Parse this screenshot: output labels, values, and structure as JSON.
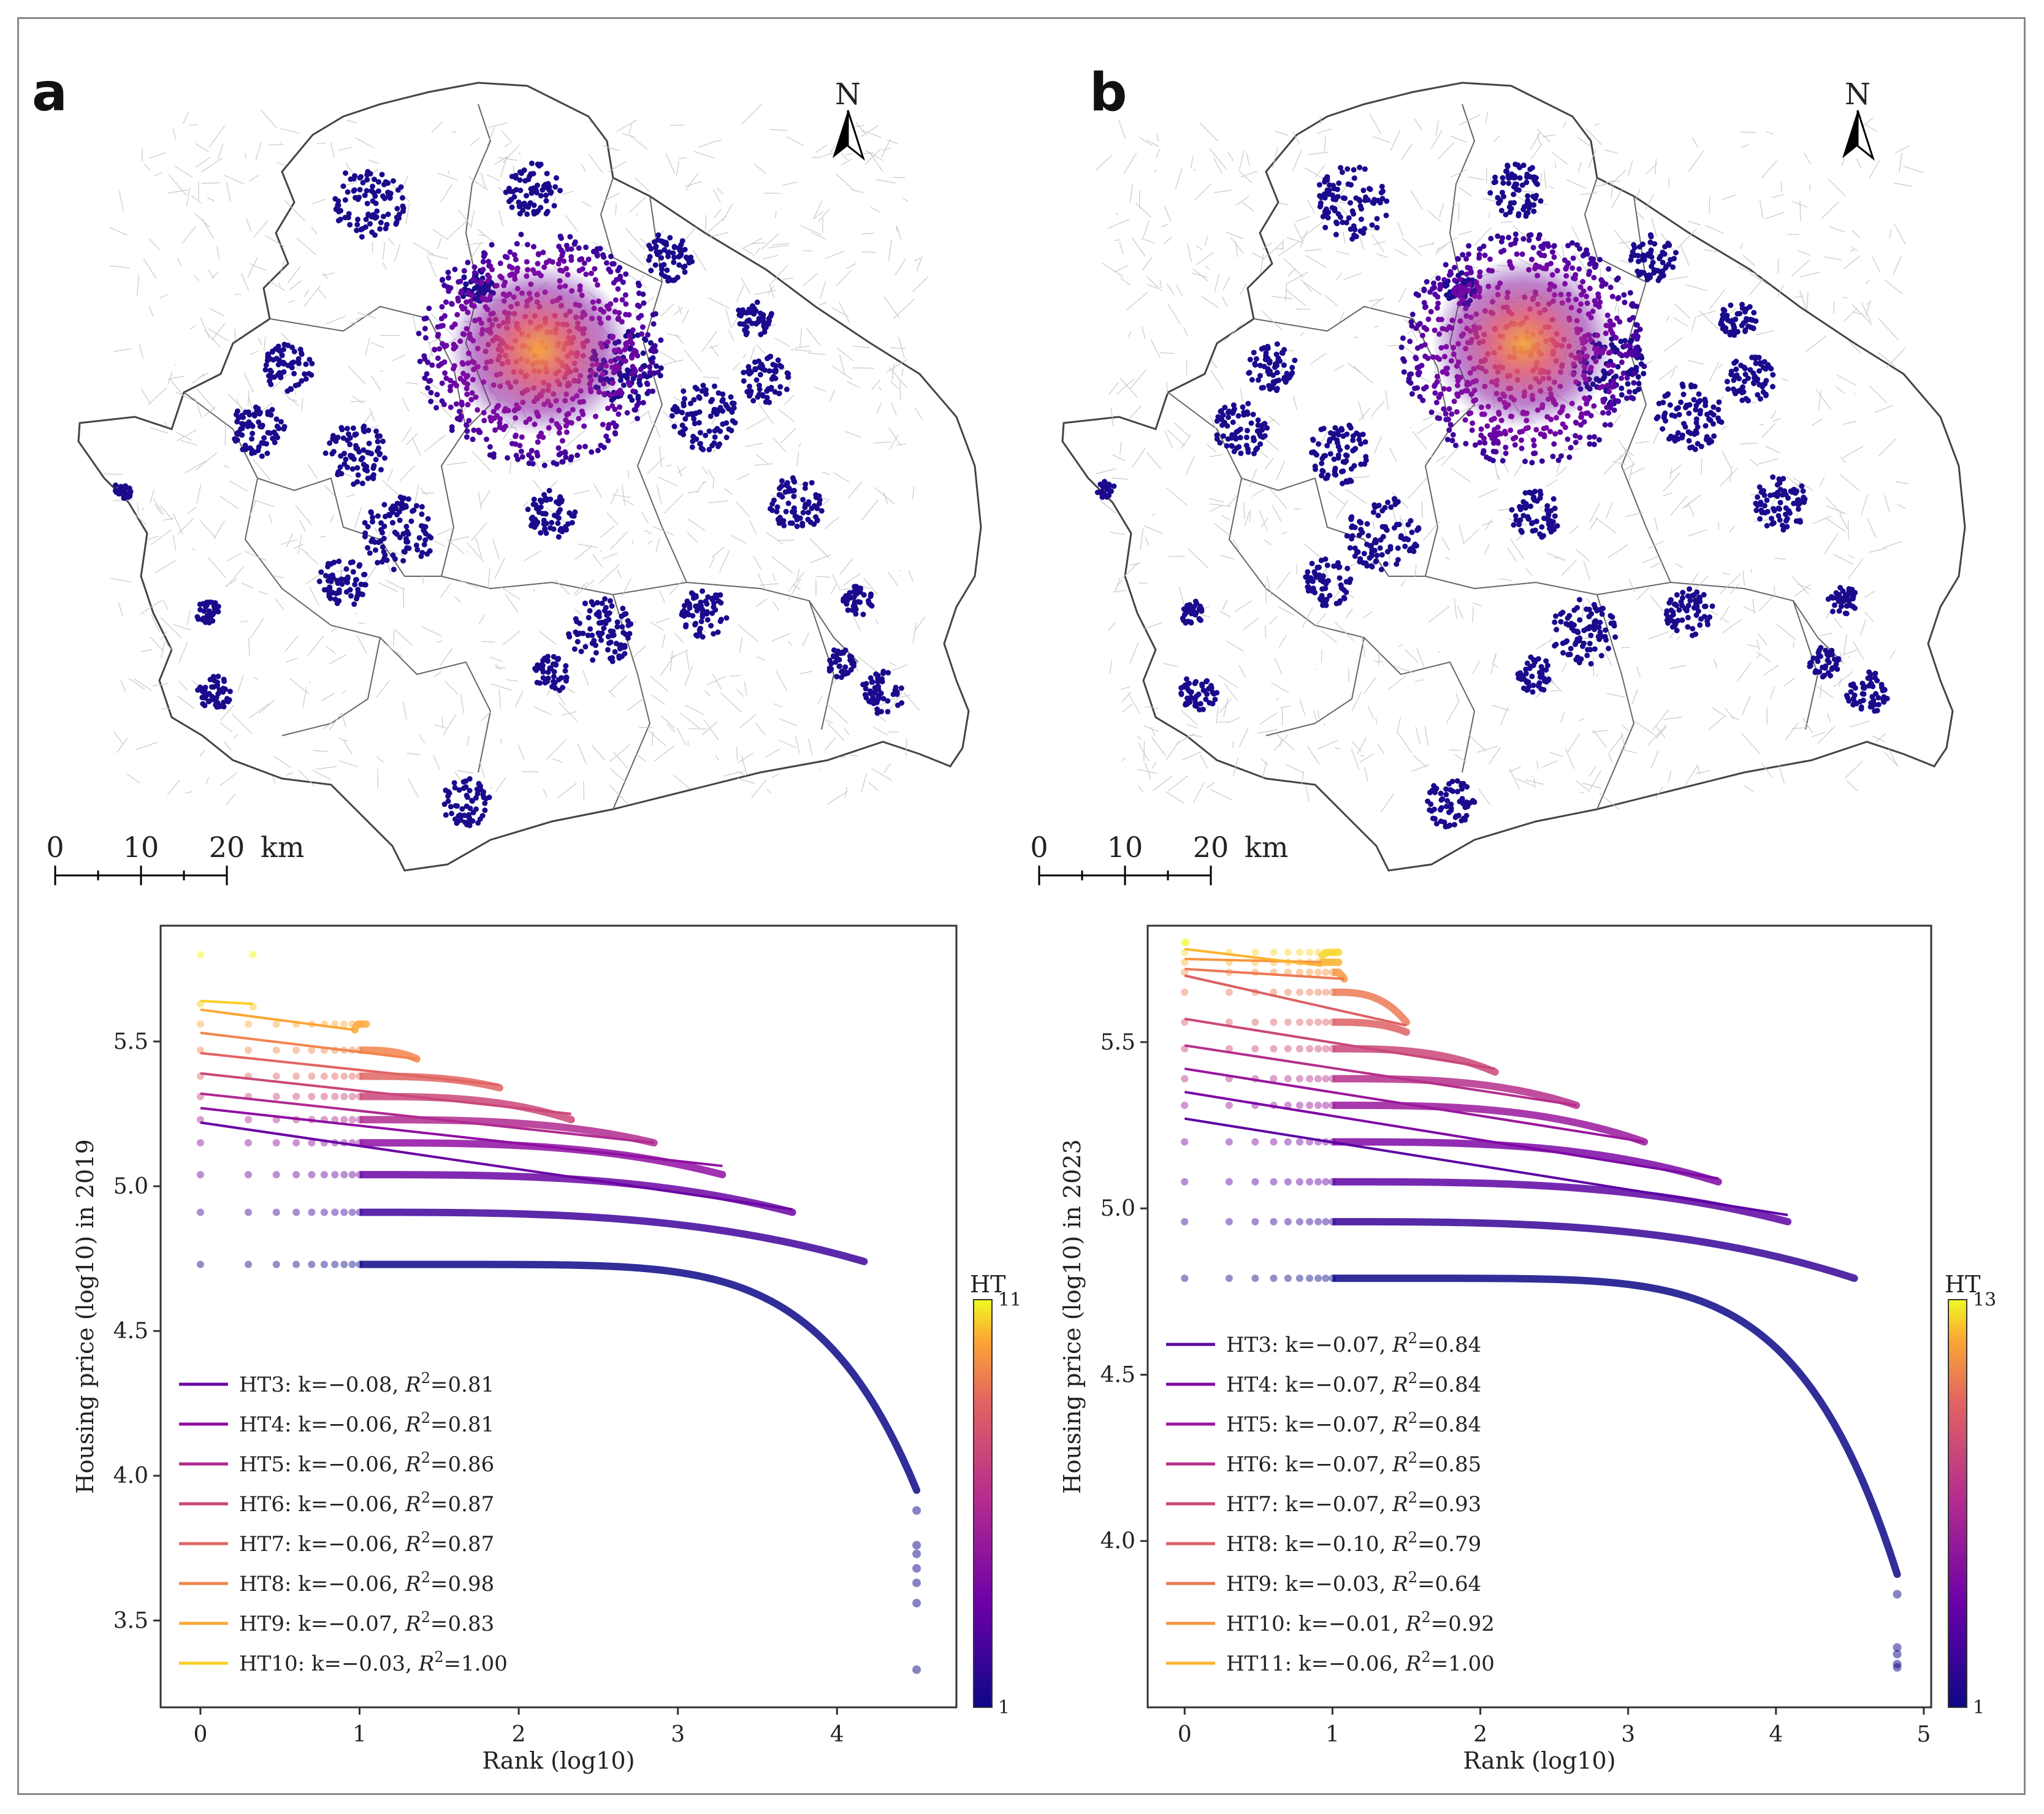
{
  "figure": {
    "panels": [
      {
        "id": "a",
        "label": "a",
        "north_label": "N",
        "scale_ticks": [
          "0",
          "10",
          "20"
        ],
        "scale_unit": "km"
      },
      {
        "id": "b",
        "label": "b",
        "north_label": "N",
        "scale_ticks": [
          "0",
          "10",
          "20"
        ],
        "scale_unit": "km"
      }
    ]
  },
  "chart_data": [
    {
      "type": "scatter",
      "xlabel": "Rank (log10)",
      "ylabel": "Housing price (log10) in 2019",
      "xlim": [
        -0.25,
        4.75
      ],
      "ylim": [
        3.2,
        5.9
      ],
      "xticks": [
        0,
        1,
        2,
        3,
        4
      ],
      "yticks": [
        3.5,
        4.0,
        4.5,
        5.0,
        5.5
      ],
      "colorbar": {
        "label": "HT",
        "min": 1,
        "max": 11,
        "colormap": "plasma"
      },
      "base_curve": {
        "plateau": 4.73,
        "end_x": 4.5,
        "end_y": 3.95,
        "tail_points": [
          3.88,
          3.76,
          3.73,
          3.68,
          3.63,
          3.56,
          3.33
        ]
      },
      "levels": [
        {
          "ht": 2,
          "y0": 4.91,
          "x_end": 4.17,
          "y_end": 4.74
        },
        {
          "ht": 3,
          "y0": 5.04,
          "x_end": 3.72,
          "y_end": 4.91
        },
        {
          "ht": 4,
          "y0": 5.15,
          "x_end": 3.28,
          "y_end": 5.04
        },
        {
          "ht": 5,
          "y0": 5.23,
          "x_end": 2.85,
          "y_end": 5.15
        },
        {
          "ht": 6,
          "y0": 5.31,
          "x_end": 2.33,
          "y_end": 5.23
        },
        {
          "ht": 7,
          "y0": 5.38,
          "x_end": 1.88,
          "y_end": 5.34
        },
        {
          "ht": 8,
          "y0": 5.47,
          "x_end": 1.36,
          "y_end": 5.44
        },
        {
          "ht": 9,
          "y0": 5.56,
          "x_end": 0.97,
          "y_end": 5.54
        },
        {
          "ht": 10,
          "y0": 5.63,
          "x_end": 0.33,
          "y_end": 5.62
        },
        {
          "ht": 11,
          "y0": 5.8,
          "x_end": 0.33,
          "y_end": 5.8
        }
      ],
      "fit_lines": [
        {
          "name": "HT3: k=−0.08, R²=0.81",
          "ht": 3,
          "x": [
            0,
            3.72
          ],
          "y": [
            5.22,
            4.92
          ]
        },
        {
          "name": "HT4: k=−0.06, R²=0.81",
          "ht": 4,
          "x": [
            0,
            3.28
          ],
          "y": [
            5.27,
            5.07
          ]
        },
        {
          "name": "HT5: k=−0.06, R²=0.86",
          "ht": 5,
          "x": [
            0,
            2.85
          ],
          "y": [
            5.32,
            5.15
          ]
        },
        {
          "name": "HT6: k=−0.06, R²=0.87",
          "ht": 6,
          "x": [
            0,
            2.33
          ],
          "y": [
            5.39,
            5.25
          ]
        },
        {
          "name": "HT7: k=−0.06, R²=0.87",
          "ht": 7,
          "x": [
            0,
            1.88
          ],
          "y": [
            5.46,
            5.35
          ]
        },
        {
          "name": "HT8: k=−0.06, R²=0.98",
          "ht": 8,
          "x": [
            0,
            1.36
          ],
          "y": [
            5.53,
            5.44
          ]
        },
        {
          "name": "HT9: k=−0.07, R²=0.83",
          "ht": 9,
          "x": [
            0,
            0.97
          ],
          "y": [
            5.61,
            5.54
          ]
        },
        {
          "name": "HT10: k=−0.03, R²=1.00",
          "ht": 10,
          "x": [
            0,
            0.33
          ],
          "y": [
            5.64,
            5.63
          ]
        }
      ],
      "legend": [
        {
          "prefix": "HT3: k=−0.08, ",
          "suffix": "=0.81",
          "ht": 3
        },
        {
          "prefix": "HT4: k=−0.06, ",
          "suffix": "=0.81",
          "ht": 4
        },
        {
          "prefix": "HT5: k=−0.06, ",
          "suffix": "=0.86",
          "ht": 5
        },
        {
          "prefix": "HT6: k=−0.06, ",
          "suffix": "=0.87",
          "ht": 6
        },
        {
          "prefix": "HT7: k=−0.06, ",
          "suffix": "=0.87",
          "ht": 7
        },
        {
          "prefix": "HT8: k=−0.06, ",
          "suffix": "=0.98",
          "ht": 8
        },
        {
          "prefix": "HT9: k=−0.07, ",
          "suffix": "=0.83",
          "ht": 9
        },
        {
          "prefix": "HT10: k=−0.03, ",
          "suffix": "=1.00",
          "ht": 10
        }
      ],
      "legend_placement": "lower-left",
      "grid": false
    },
    {
      "type": "scatter",
      "xlabel": "Rank (log10)",
      "ylabel": "Housing price (log10) in 2023",
      "xlim": [
        -0.25,
        5.05
      ],
      "ylim": [
        3.5,
        5.85
      ],
      "xticks": [
        0,
        1,
        2,
        3,
        4,
        5
      ],
      "yticks": [
        4.0,
        4.5,
        5.0,
        5.5
      ],
      "colorbar": {
        "label": "HT",
        "min": 1,
        "max": 13,
        "colormap": "plasma"
      },
      "base_curve": {
        "plateau": 4.79,
        "end_x": 4.82,
        "end_y": 3.9,
        "tail_points": [
          3.84,
          3.68,
          3.66,
          3.63,
          3.62
        ]
      },
      "levels": [
        {
          "ht": 2,
          "y0": 4.96,
          "x_end": 4.53,
          "y_end": 4.79
        },
        {
          "ht": 3,
          "y0": 5.08,
          "x_end": 4.08,
          "y_end": 4.96
        },
        {
          "ht": 4,
          "y0": 5.2,
          "x_end": 3.61,
          "y_end": 5.08
        },
        {
          "ht": 5,
          "y0": 5.31,
          "x_end": 3.11,
          "y_end": 5.2
        },
        {
          "ht": 6,
          "y0": 5.39,
          "x_end": 2.65,
          "y_end": 5.31
        },
        {
          "ht": 7,
          "y0": 5.48,
          "x_end": 2.1,
          "y_end": 5.41
        },
        {
          "ht": 8,
          "y0": 5.56,
          "x_end": 1.5,
          "y_end": 5.53
        },
        {
          "ht": 9,
          "y0": 5.65,
          "x_end": 1.5,
          "y_end": 5.56
        },
        {
          "ht": 10,
          "y0": 5.71,
          "x_end": 1.08,
          "y_end": 5.69
        },
        {
          "ht": 11,
          "y0": 5.74,
          "x_end": 0.93,
          "y_end": 5.74
        },
        {
          "ht": 12,
          "y0": 5.77,
          "x_end": 0.93,
          "y_end": 5.76
        },
        {
          "ht": 13,
          "y0": 5.8,
          "x_end": 0.01,
          "y_end": 5.8
        }
      ],
      "fit_lines": [
        {
          "name": "HT3: k=−0.07, R²=0.84",
          "ht": 3,
          "x": [
            0,
            4.08
          ],
          "y": [
            5.27,
            4.98
          ]
        },
        {
          "name": "HT4: k=−0.07, R²=0.84",
          "ht": 4,
          "x": [
            0,
            3.61
          ],
          "y": [
            5.35,
            5.09
          ]
        },
        {
          "name": "HT5: k=−0.07, R²=0.84",
          "ht": 5,
          "x": [
            0,
            3.11
          ],
          "y": [
            5.42,
            5.2
          ]
        },
        {
          "name": "HT6: k=−0.07, R²=0.85",
          "ht": 6,
          "x": [
            0,
            2.65
          ],
          "y": [
            5.49,
            5.31
          ]
        },
        {
          "name": "HT7: k=−0.07, R²=0.93",
          "ht": 7,
          "x": [
            0,
            2.1
          ],
          "y": [
            5.57,
            5.42
          ]
        },
        {
          "name": "HT8: k=−0.10, R²=0.79",
          "ht": 8,
          "x": [
            0,
            1.5
          ],
          "y": [
            5.7,
            5.55
          ]
        },
        {
          "name": "HT9: k=−0.03, R²=0.64",
          "ht": 9,
          "x": [
            0,
            1.08
          ],
          "y": [
            5.72,
            5.69
          ]
        },
        {
          "name": "HT10: k=−0.01, R²=0.92",
          "ht": 10,
          "x": [
            0,
            0.93
          ],
          "y": [
            5.75,
            5.74
          ]
        },
        {
          "name": "HT11: k=−0.06, R²=1.00",
          "ht": 11,
          "x": [
            0,
            0.93
          ],
          "y": [
            5.78,
            5.73
          ]
        }
      ],
      "legend": [
        {
          "prefix": "HT3: k=−0.07, ",
          "suffix": "=0.84",
          "ht": 3
        },
        {
          "prefix": "HT4: k=−0.07, ",
          "suffix": "=0.84",
          "ht": 4
        },
        {
          "prefix": "HT5: k=−0.07, ",
          "suffix": "=0.84",
          "ht": 5
        },
        {
          "prefix": "HT6: k=−0.07, ",
          "suffix": "=0.85",
          "ht": 6
        },
        {
          "prefix": "HT7: k=−0.07, ",
          "suffix": "=0.93",
          "ht": 7
        },
        {
          "prefix": "HT8: k=−0.10, ",
          "suffix": "=0.79",
          "ht": 8
        },
        {
          "prefix": "HT9: k=−0.03, ",
          "suffix": "=0.64",
          "ht": 9
        },
        {
          "prefix": "HT10: k=−0.01, ",
          "suffix": "=0.92",
          "ht": 10
        },
        {
          "prefix": "HT11: k=−0.06, ",
          "suffix": "=1.00",
          "ht": 11
        }
      ],
      "legend_placement": "lower-left",
      "grid": false
    }
  ]
}
